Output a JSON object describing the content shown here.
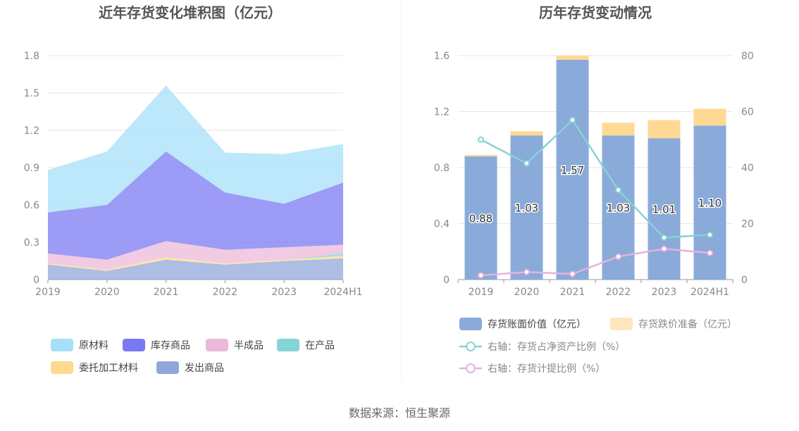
{
  "source_text": "数据来源：恒生聚源",
  "chart_data": [
    {
      "type": "area",
      "stacked": true,
      "title": "近年存货变化堆积图（亿元）",
      "categories": [
        "2019",
        "2020",
        "2021",
        "2022",
        "2023",
        "2024H1"
      ],
      "yticks": [
        "0",
        "0.3",
        "0.6",
        "0.9",
        "1.2",
        "1.5",
        "1.8"
      ],
      "ylim": [
        0,
        1.8
      ],
      "grid": true,
      "legend_position": "bottom",
      "series": [
        {
          "name": "发出商品",
          "color": "#91a7db",
          "values": [
            0.12,
            0.07,
            0.16,
            0.12,
            0.15,
            0.17
          ]
        },
        {
          "name": "委托加工材料",
          "color": "#ffd98e",
          "values": [
            0.01,
            0.01,
            0.02,
            0.01,
            0.01,
            0.02
          ]
        },
        {
          "name": "在产品",
          "color": "#84d5d5",
          "values": [
            0.0,
            0.0,
            0.0,
            0.0,
            0.0,
            0.02
          ]
        },
        {
          "name": "半成品",
          "color": "#ebb9d9",
          "values": [
            0.08,
            0.08,
            0.13,
            0.11,
            0.1,
            0.07
          ]
        },
        {
          "name": "库存商品",
          "color": "#7b79f2",
          "values": [
            0.33,
            0.44,
            0.72,
            0.46,
            0.35,
            0.5
          ]
        },
        {
          "name": "原材料",
          "color": "#a7dff8",
          "values": [
            0.34,
            0.43,
            0.53,
            0.32,
            0.4,
            0.31
          ]
        }
      ],
      "legend_order": [
        "原材料",
        "库存商品",
        "半成品",
        "在产品",
        "委托加工材料",
        "发出商品"
      ]
    },
    {
      "type": "bar",
      "stacked": true,
      "title": "历年存货变动情况",
      "categories": [
        "2019",
        "2020",
        "2021",
        "2022",
        "2023",
        "2024H1"
      ],
      "yticks_left": [
        "0",
        "0.4",
        "0.8",
        "1.2",
        "1.6"
      ],
      "ylim_left": [
        0,
        1.6
      ],
      "yticks_right": [
        "0",
        "20",
        "40",
        "60",
        "80"
      ],
      "ylim_right": [
        0,
        80
      ],
      "grid": true,
      "legend_position": "bottom",
      "bar_series": [
        {
          "name": "存货账面价值（亿元）",
          "color": "#8aaad9",
          "values": [
            0.88,
            1.03,
            1.57,
            1.03,
            1.01,
            1.1
          ],
          "labels": [
            "0.88",
            "1.03",
            "1.57",
            "1.03",
            "1.01",
            "1.10"
          ]
        },
        {
          "name": "存货跌价准备（亿元）",
          "color": "#ffd993",
          "legend_color": "#ffe6bf",
          "values": [
            0.01,
            0.03,
            0.03,
            0.09,
            0.13,
            0.12
          ]
        }
      ],
      "line_series": [
        {
          "name": "右轴：存货占净资产比例（%）",
          "color": "#86d3d3",
          "axis": "right",
          "values": [
            50,
            41.5,
            57,
            32,
            15,
            16
          ]
        },
        {
          "name": "右轴：存货计提比例（%）",
          "color": "#e6b3dc",
          "axis": "right",
          "values": [
            1.5,
            2.7,
            2,
            8.2,
            11,
            9.5
          ]
        }
      ]
    }
  ]
}
